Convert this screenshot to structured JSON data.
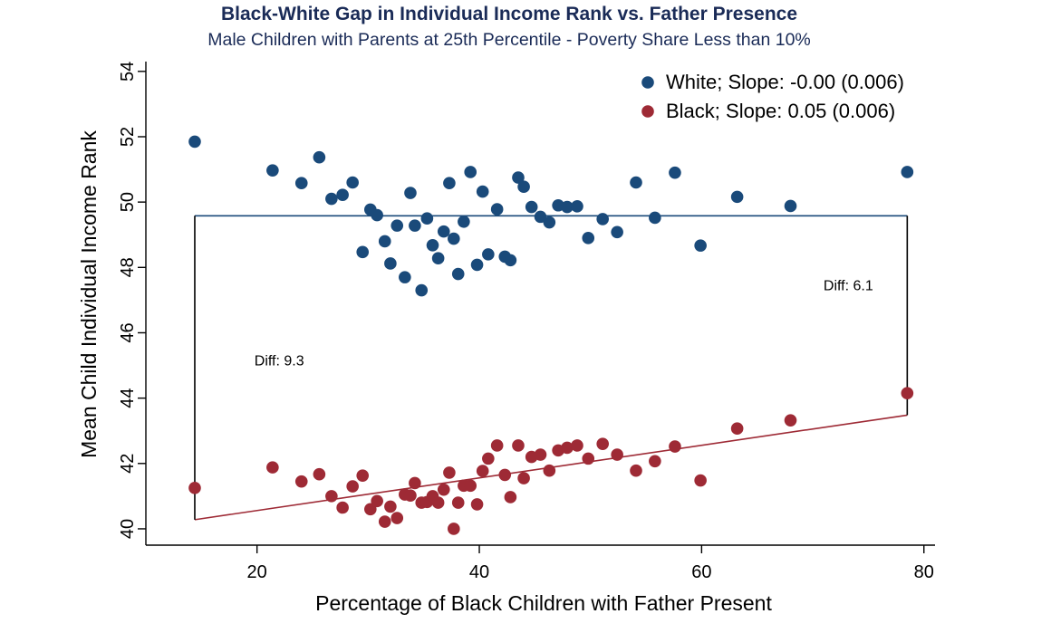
{
  "chart_data": {
    "type": "scatter",
    "title": "Black-White Gap in Individual Income Rank vs. Father Presence",
    "subtitle": "Male Children with Parents at 25th Percentile - Poverty Share Less than 10%",
    "xlabel": "Percentage of Black Children with Father Present",
    "ylabel": "Mean Child Individual Income Rank",
    "xlim": [
      10,
      81
    ],
    "ylim": [
      39.5,
      54.3
    ],
    "xticks": [
      20,
      40,
      60,
      80
    ],
    "yticks": [
      40,
      42,
      44,
      46,
      48,
      50,
      52,
      54
    ],
    "grid": false,
    "legend_position": "top-right",
    "colors": {
      "white": "#1a4a7a",
      "black": "#9e2a35",
      "frame": "#000000"
    },
    "series": [
      {
        "name": "White; Slope: -0.00 (0.006)",
        "color": "#1a4a7a",
        "points": [
          [
            14.4,
            51.85
          ],
          [
            21.4,
            50.97
          ],
          [
            24.0,
            50.58
          ],
          [
            25.6,
            51.37
          ],
          [
            26.7,
            50.1
          ],
          [
            27.7,
            50.22
          ],
          [
            28.6,
            50.6
          ],
          [
            29.5,
            48.47
          ],
          [
            30.2,
            49.77
          ],
          [
            30.8,
            49.6
          ],
          [
            31.5,
            48.8
          ],
          [
            32.0,
            48.12
          ],
          [
            32.6,
            49.28
          ],
          [
            33.3,
            47.7
          ],
          [
            33.8,
            50.28
          ],
          [
            34.2,
            49.28
          ],
          [
            34.8,
            47.3
          ],
          [
            35.3,
            49.5
          ],
          [
            35.8,
            48.68
          ],
          [
            36.3,
            48.28
          ],
          [
            36.8,
            49.1
          ],
          [
            37.3,
            50.58
          ],
          [
            37.7,
            48.88
          ],
          [
            38.1,
            47.8
          ],
          [
            38.6,
            49.4
          ],
          [
            39.2,
            50.92
          ],
          [
            39.8,
            48.08
          ],
          [
            40.3,
            50.32
          ],
          [
            40.8,
            48.4
          ],
          [
            41.6,
            49.78
          ],
          [
            42.3,
            48.33
          ],
          [
            42.8,
            48.22
          ],
          [
            43.5,
            50.75
          ],
          [
            44.0,
            50.47
          ],
          [
            44.7,
            49.85
          ],
          [
            45.5,
            49.55
          ],
          [
            46.3,
            49.38
          ],
          [
            47.1,
            49.9
          ],
          [
            47.9,
            49.85
          ],
          [
            48.8,
            49.87
          ],
          [
            49.8,
            48.9
          ],
          [
            51.1,
            49.48
          ],
          [
            52.4,
            49.08
          ],
          [
            54.1,
            50.6
          ],
          [
            55.8,
            49.52
          ],
          [
            57.6,
            50.9
          ],
          [
            59.9,
            48.67
          ],
          [
            63.2,
            50.16
          ],
          [
            68.0,
            49.88
          ],
          [
            78.5,
            50.92
          ]
        ],
        "fit_line": {
          "x": [
            14.4,
            78.5
          ],
          "y": [
            49.58,
            49.58
          ]
        }
      },
      {
        "name": "Black; Slope: 0.05 (0.006)",
        "color": "#9e2a35",
        "points": [
          [
            14.4,
            41.25
          ],
          [
            21.4,
            41.88
          ],
          [
            24.0,
            41.45
          ],
          [
            25.6,
            41.67
          ],
          [
            26.7,
            41.0
          ],
          [
            27.7,
            40.65
          ],
          [
            28.6,
            41.3
          ],
          [
            29.5,
            41.63
          ],
          [
            30.2,
            40.6
          ],
          [
            30.8,
            40.85
          ],
          [
            31.5,
            40.22
          ],
          [
            32.0,
            40.68
          ],
          [
            32.6,
            40.33
          ],
          [
            33.3,
            41.05
          ],
          [
            33.8,
            41.02
          ],
          [
            34.2,
            41.4
          ],
          [
            34.8,
            40.8
          ],
          [
            35.3,
            40.82
          ],
          [
            35.8,
            41.0
          ],
          [
            36.3,
            40.8
          ],
          [
            36.8,
            41.2
          ],
          [
            37.3,
            41.72
          ],
          [
            37.7,
            40.0
          ],
          [
            38.1,
            40.8
          ],
          [
            38.6,
            41.32
          ],
          [
            39.2,
            41.32
          ],
          [
            39.8,
            40.75
          ],
          [
            40.3,
            41.77
          ],
          [
            40.8,
            42.15
          ],
          [
            41.6,
            42.55
          ],
          [
            42.3,
            41.65
          ],
          [
            42.8,
            40.97
          ],
          [
            43.5,
            42.55
          ],
          [
            44.0,
            41.55
          ],
          [
            44.7,
            42.2
          ],
          [
            45.5,
            42.27
          ],
          [
            46.3,
            41.78
          ],
          [
            47.1,
            42.4
          ],
          [
            47.9,
            42.48
          ],
          [
            48.8,
            42.55
          ],
          [
            49.8,
            42.15
          ],
          [
            51.1,
            42.6
          ],
          [
            52.4,
            42.27
          ],
          [
            54.1,
            41.78
          ],
          [
            55.8,
            42.07
          ],
          [
            57.6,
            42.52
          ],
          [
            59.9,
            41.48
          ],
          [
            63.2,
            43.07
          ],
          [
            68.0,
            43.32
          ],
          [
            78.5,
            44.15
          ]
        ],
        "fit_line": {
          "x": [
            14.4,
            78.5
          ],
          "y": [
            40.28,
            43.48
          ]
        }
      }
    ],
    "gap_brackets": [
      {
        "label": "Diff: 9.3",
        "x": 14.4,
        "y_top": 49.58,
        "y_bottom": 40.28,
        "label_x": 22.0,
        "label_y": 45.0
      },
      {
        "label": "Diff: 6.1",
        "x": 78.5,
        "y_top": 49.58,
        "y_bottom": 43.48,
        "label_x": 73.2,
        "label_y": 47.3
      }
    ]
  }
}
